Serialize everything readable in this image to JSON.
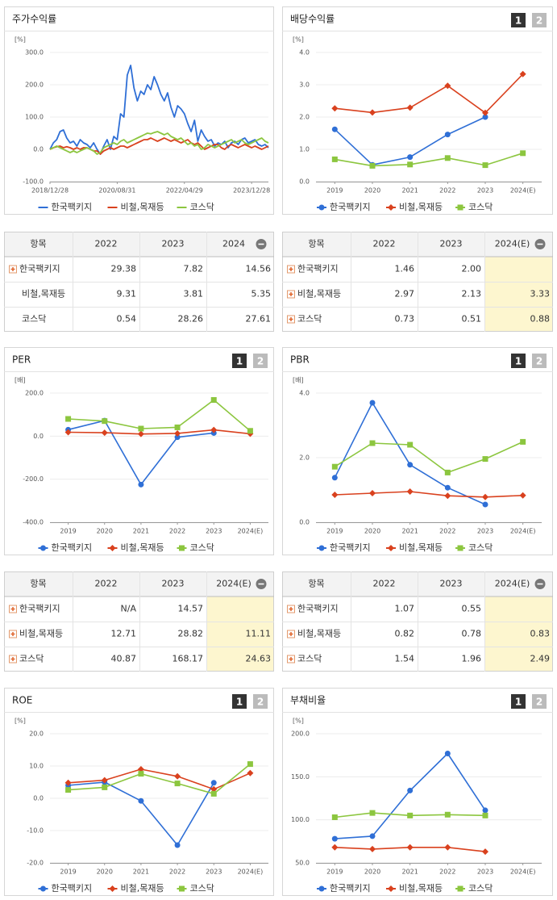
{
  "panel_buttons": [
    "1",
    "2"
  ],
  "chart_data": [
    {
      "type": "line",
      "title": "주가수익률",
      "y_label": "[%]",
      "markers": false,
      "grid": true,
      "categories": [
        "2018/12/28",
        null,
        null,
        null,
        null,
        null,
        null,
        null,
        null,
        null,
        null,
        null,
        null,
        null,
        null,
        null,
        null,
        null,
        null,
        null,
        "2020/08/31",
        null,
        null,
        null,
        null,
        null,
        null,
        null,
        null,
        null,
        null,
        null,
        null,
        null,
        null,
        null,
        null,
        null,
        null,
        null,
        "2022/04/29",
        null,
        null,
        null,
        null,
        null,
        null,
        null,
        null,
        null,
        null,
        null,
        null,
        null,
        null,
        null,
        null,
        null,
        null,
        null,
        "2023/12/28",
        null,
        null,
        null,
        null,
        null
      ],
      "ylim": [
        -100,
        300
      ],
      "yticks": [
        {
          "value": -100,
          "label": "-100.0"
        },
        {
          "value": 0,
          "label": "0.0"
        },
        {
          "value": 100,
          "label": "100.0"
        },
        {
          "value": 200,
          "label": "200.0"
        },
        {
          "value": 300,
          "label": "300.0"
        }
      ],
      "series": [
        {
          "name": "한국팩키지",
          "color": "#2f6fd6",
          "values": [
            0,
            20,
            30,
            55,
            60,
            35,
            20,
            25,
            10,
            30,
            20,
            15,
            5,
            20,
            0,
            -15,
            10,
            30,
            0,
            40,
            30,
            110,
            100,
            230,
            260,
            190,
            150,
            180,
            170,
            200,
            185,
            225,
            200,
            170,
            150,
            175,
            130,
            100,
            135,
            125,
            110,
            80,
            55,
            90,
            25,
            60,
            40,
            25,
            30,
            10,
            20,
            15,
            25,
            5,
            20,
            25,
            15,
            30,
            35,
            20,
            25,
            30,
            15,
            10,
            15,
            5
          ]
        },
        {
          "name": "비철,목재등",
          "color": "#d9411e",
          "values": [
            0,
            5,
            8,
            10,
            5,
            8,
            5,
            0,
            5,
            0,
            5,
            5,
            0,
            -5,
            -5,
            -15,
            -5,
            0,
            5,
            0,
            5,
            10,
            10,
            5,
            10,
            15,
            20,
            25,
            30,
            30,
            35,
            30,
            25,
            30,
            35,
            30,
            25,
            30,
            25,
            20,
            25,
            30,
            20,
            15,
            20,
            10,
            0,
            5,
            10,
            15,
            15,
            5,
            0,
            10,
            15,
            10,
            5,
            10,
            15,
            10,
            5,
            10,
            5,
            0,
            5,
            10
          ]
        },
        {
          "name": "코스닥",
          "color": "#8cc63f",
          "values": [
            0,
            5,
            10,
            5,
            0,
            -5,
            -10,
            -5,
            -10,
            -5,
            0,
            5,
            0,
            -5,
            -15,
            -10,
            5,
            10,
            15,
            20,
            15,
            25,
            30,
            20,
            25,
            30,
            35,
            40,
            45,
            50,
            48,
            52,
            55,
            50,
            45,
            50,
            40,
            35,
            30,
            35,
            25,
            15,
            20,
            10,
            15,
            0,
            5,
            15,
            10,
            5,
            10,
            15,
            20,
            25,
            30,
            20,
            25,
            30,
            20,
            15,
            20,
            25,
            30,
            35,
            25,
            20
          ]
        }
      ]
    },
    {
      "type": "line",
      "title": "배당수익률",
      "y_label": "[%]",
      "markers": true,
      "grid": true,
      "categories": [
        "2019",
        "2020",
        "2021",
        "2022",
        "2023",
        "2024(E)"
      ],
      "ylim": [
        0,
        4
      ],
      "yticks": [
        {
          "value": 0,
          "label": "0.0"
        },
        {
          "value": 1,
          "label": "1.0"
        },
        {
          "value": 2,
          "label": "2.0"
        },
        {
          "value": 3,
          "label": "3.0"
        },
        {
          "value": 4,
          "label": "4.0"
        }
      ],
      "series": [
        {
          "name": "한국팩키지",
          "color": "#2f6fd6",
          "marker": "circle",
          "values": [
            1.62,
            0.52,
            0.76,
            1.46,
            2.0,
            null
          ]
        },
        {
          "name": "비철,목재등",
          "color": "#d9411e",
          "marker": "diamond",
          "values": [
            2.27,
            2.14,
            2.29,
            2.97,
            2.13,
            3.33
          ]
        },
        {
          "name": "코스닥",
          "color": "#8cc63f",
          "marker": "square",
          "values": [
            0.69,
            0.49,
            0.53,
            0.73,
            0.51,
            0.88
          ]
        }
      ]
    },
    {
      "type": "line",
      "title": "PER",
      "y_label": "[배]",
      "markers": true,
      "grid": true,
      "categories": [
        "2019",
        "2020",
        "2021",
        "2022",
        "2023",
        "2024(E)"
      ],
      "ylim": [
        -400,
        200
      ],
      "yticks": [
        {
          "value": -400,
          "label": "-400.0"
        },
        {
          "value": -200,
          "label": "-200.0"
        },
        {
          "value": 0,
          "label": "0.0"
        },
        {
          "value": 200,
          "label": "200.0"
        }
      ],
      "series": [
        {
          "name": "한국팩키지",
          "color": "#2f6fd6",
          "marker": "circle",
          "values": [
            30,
            72,
            -225,
            -5,
            14.57,
            null
          ]
        },
        {
          "name": "비철,목재등",
          "color": "#d9411e",
          "marker": "diamond",
          "values": [
            18,
            16,
            10,
            12.71,
            28.82,
            11.11
          ]
        },
        {
          "name": "코스닥",
          "color": "#8cc63f",
          "marker": "square",
          "values": [
            80,
            70,
            35,
            40.87,
            168.17,
            24.63
          ]
        }
      ]
    },
    {
      "type": "line",
      "title": "PBR",
      "y_label": "[배]",
      "markers": true,
      "grid": true,
      "categories": [
        "2019",
        "2020",
        "2021",
        "2022",
        "2023",
        "2024(E)"
      ],
      "ylim": [
        0,
        4
      ],
      "yticks": [
        {
          "value": 0,
          "label": "0.0"
        },
        {
          "value": 2,
          "label": "2.0"
        },
        {
          "value": 4,
          "label": "4.0"
        }
      ],
      "series": [
        {
          "name": "한국팩키지",
          "color": "#2f6fd6",
          "marker": "circle",
          "values": [
            1.38,
            3.7,
            1.78,
            1.07,
            0.55,
            null
          ]
        },
        {
          "name": "비철,목재등",
          "color": "#d9411e",
          "marker": "diamond",
          "values": [
            0.85,
            0.9,
            0.95,
            0.82,
            0.78,
            0.83
          ]
        },
        {
          "name": "코스닥",
          "color": "#8cc63f",
          "marker": "square",
          "values": [
            1.72,
            2.45,
            2.4,
            1.54,
            1.96,
            2.49
          ]
        }
      ]
    },
    {
      "type": "line",
      "title": "ROE",
      "y_label": "[%]",
      "markers": true,
      "grid": true,
      "categories": [
        "2019",
        "2020",
        "2021",
        "2022",
        "2023",
        "2024(E)"
      ],
      "ylim": [
        -20,
        20
      ],
      "yticks": [
        {
          "value": -20,
          "label": "-20.0"
        },
        {
          "value": -10,
          "label": "-10.0"
        },
        {
          "value": 0,
          "label": "0.0"
        },
        {
          "value": 10,
          "label": "10.0"
        },
        {
          "value": 20,
          "label": "20.0"
        }
      ],
      "series": [
        {
          "name": "한국팩키지",
          "color": "#2f6fd6",
          "marker": "circle",
          "values": [
            4,
            5,
            -0.8,
            -14.5,
            4.8,
            null
          ]
        },
        {
          "name": "비철,목재등",
          "color": "#d9411e",
          "marker": "diamond",
          "values": [
            4.8,
            5.6,
            9,
            6.8,
            2.8,
            7.8
          ]
        },
        {
          "name": "코스닥",
          "color": "#8cc63f",
          "marker": "square",
          "values": [
            2.6,
            3.4,
            7.6,
            4.6,
            1.4,
            10.6
          ]
        }
      ]
    },
    {
      "type": "line",
      "title": "부채비율",
      "y_label": "[%]",
      "markers": true,
      "grid": true,
      "categories": [
        "2019",
        "2020",
        "2021",
        "2022",
        "2023",
        "2024(E)"
      ],
      "ylim": [
        50,
        200
      ],
      "yticks": [
        {
          "value": 50,
          "label": "50.0"
        },
        {
          "value": 100,
          "label": "100.0"
        },
        {
          "value": 150,
          "label": "150.0"
        },
        {
          "value": 200,
          "label": "200.0"
        }
      ],
      "series": [
        {
          "name": "한국팩키지",
          "color": "#2f6fd6",
          "marker": "circle",
          "values": [
            78,
            81,
            134,
            177,
            111,
            null
          ]
        },
        {
          "name": "비철,목재등",
          "color": "#d9411e",
          "marker": "diamond",
          "values": [
            68,
            66,
            68,
            68,
            63,
            null
          ]
        },
        {
          "name": "코스닥",
          "color": "#8cc63f",
          "marker": "square",
          "values": [
            103,
            108,
            105,
            106,
            105,
            null
          ]
        }
      ]
    }
  ],
  "tables": [
    {
      "columns": [
        "항목",
        "2022",
        "2023",
        "2024"
      ],
      "rows": [
        {
          "label": "한국팩키지",
          "cells": [
            "29.38",
            "7.82",
            "14.56"
          ]
        },
        {
          "label": "비철,목재등",
          "cells": [
            "9.31",
            "3.81",
            "5.35"
          ]
        },
        {
          "label": "코스닥",
          "cells": [
            "0.54",
            "28.26",
            "27.61"
          ]
        }
      ]
    },
    {
      "columns": [
        "항목",
        "2022",
        "2023",
        "2024(E)"
      ],
      "rows": [
        {
          "label": "한국팩키지",
          "cells": [
            "1.46",
            "2.00",
            null
          ]
        },
        {
          "label": "비철,목재등",
          "cells": [
            "2.97",
            "2.13",
            "3.33"
          ]
        },
        {
          "label": "코스닥",
          "cells": [
            "0.73",
            "0.51",
            "0.88"
          ]
        }
      ]
    },
    {
      "columns": [
        "항목",
        "2022",
        "2023",
        "2024(E)"
      ],
      "rows": [
        {
          "label": "한국팩키지",
          "cells": [
            "N/A",
            "14.57",
            null
          ]
        },
        {
          "label": "비철,목재등",
          "cells": [
            "12.71",
            "28.82",
            "11.11"
          ]
        },
        {
          "label": "코스닥",
          "cells": [
            "40.87",
            "168.17",
            "24.63"
          ]
        }
      ]
    },
    {
      "columns": [
        "항목",
        "2022",
        "2023",
        "2024(E)"
      ],
      "rows": [
        {
          "label": "한국팩키지",
          "cells": [
            "1.07",
            "0.55",
            null
          ]
        },
        {
          "label": "비철,목재등",
          "cells": [
            "0.82",
            "0.78",
            "0.83"
          ]
        },
        {
          "label": "코스닥",
          "cells": [
            "1.54",
            "1.96",
            "2.49"
          ]
        }
      ]
    }
  ]
}
